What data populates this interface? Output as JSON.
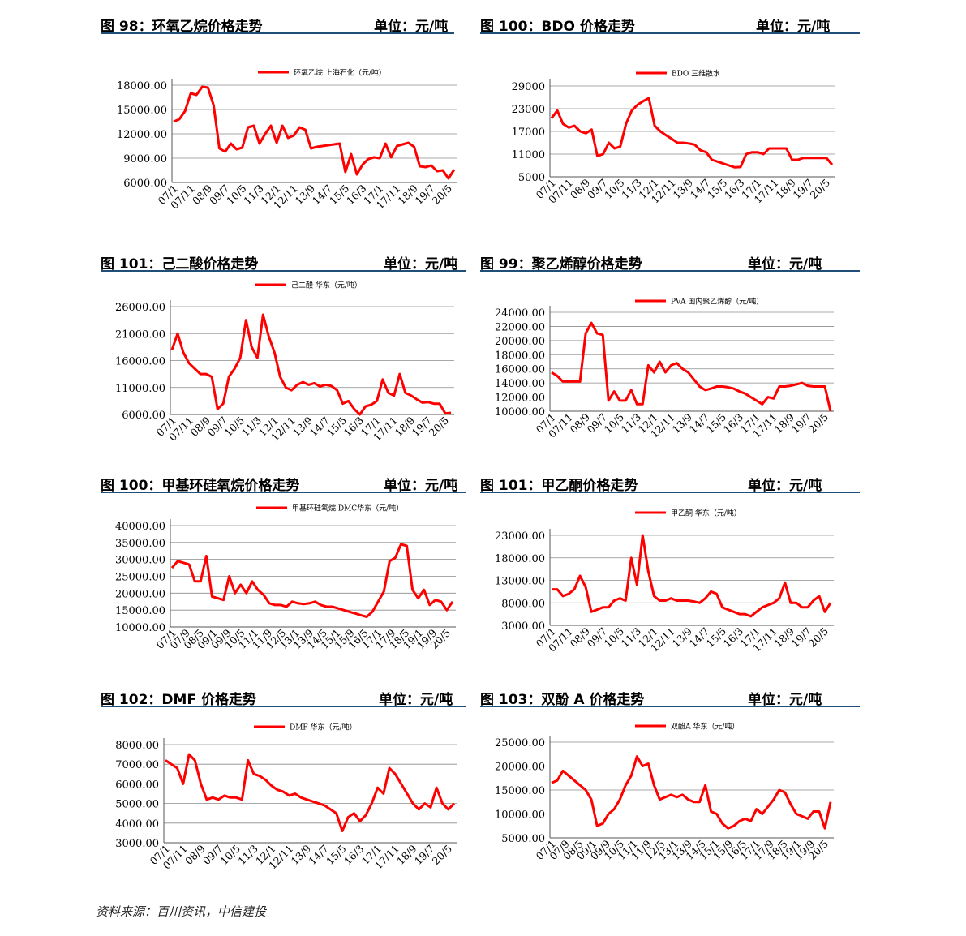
{
  "footer": {
    "source": "资料来源：百川资讯，中信建投"
  },
  "panels": [
    {
      "title": "图 98：环氧乙烷价格走势",
      "unit": "单位：元/吨"
    },
    {
      "title": "图 100：BDO 价格走势",
      "unit": "单位：元/吨"
    },
    {
      "title": "图 101：己二酸价格走势",
      "unit": "单位：元/吨"
    },
    {
      "title": "图 99：聚乙烯醇价格走势",
      "unit": "单位：元/吨"
    },
    {
      "title": "图 100：甲基环硅氧烷价格走势",
      "unit": "单位：元/吨"
    },
    {
      "title": "图 101：甲乙酮价格走势",
      "unit": "单位：元/吨"
    },
    {
      "title": "图 102：DMF 价格走势",
      "unit": "单位：元/吨"
    },
    {
      "title": "图 103：双酚 A 价格走势",
      "unit": "单位：元/吨"
    }
  ],
  "chart_data": [
    {
      "type": "line",
      "legend": "环氧乙烷 上海石化（元/吨）",
      "line_color": "#ff0000",
      "ylim": [
        6000,
        18000
      ],
      "yticks": [
        "18000.00",
        "15000.00",
        "12000.00",
        "9000.00",
        "6000.00"
      ],
      "ytick_values": [
        18000,
        15000,
        12000,
        9000,
        6000
      ],
      "xticks": [
        "07/1",
        "07/11",
        "08/9",
        "09/7",
        "10/5",
        "11/3",
        "12/1",
        "12/11",
        "13/9",
        "14/7",
        "15/5",
        "16/3",
        "17/1",
        "17/11",
        "18/9",
        "19/7",
        "20/5"
      ],
      "grid": "horizontal",
      "series": [
        {
          "values": [
            13500,
            13800,
            14800,
            17000,
            16800,
            17800,
            17700,
            15500,
            10200,
            9800,
            10800,
            10100,
            10300,
            12800,
            13000,
            10800,
            12000,
            13000,
            10900,
            13000,
            11500,
            11800,
            12800,
            12500,
            10200,
            10400,
            10500,
            10600,
            10700,
            10800,
            7300,
            9500,
            7000,
            8200,
            8900,
            9100,
            9000,
            10800,
            9100,
            10500,
            10700,
            10900,
            10400,
            8000,
            7900,
            8100,
            7400,
            7500,
            6500,
            7600
          ]
        }
      ]
    },
    {
      "type": "line",
      "legend": "BDO 三维散水",
      "line_color": "#ff0000",
      "ylim": [
        5000,
        29000
      ],
      "yticks": [
        "29000",
        "23000",
        "17000",
        "11000",
        "5000"
      ],
      "ytick_values": [
        29000,
        23000,
        17000,
        11000,
        5000
      ],
      "xticks": [
        "07/1",
        "07/11",
        "08/9",
        "09/7",
        "10/5",
        "11/3",
        "12/1",
        "12/11",
        "13/9",
        "14/7",
        "15/5",
        "16/3",
        "17/1",
        "17/11",
        "18/9",
        "19/7",
        "20/5"
      ],
      "grid": "horizontal",
      "series": [
        {
          "values": [
            20500,
            22500,
            19000,
            18000,
            18500,
            17000,
            16500,
            17500,
            10500,
            11000,
            14000,
            12500,
            13000,
            19000,
            22500,
            24000,
            25000,
            25800,
            18500,
            17000,
            16000,
            15000,
            14000,
            14000,
            13800,
            13500,
            12000,
            11500,
            9500,
            9000,
            8500,
            8000,
            7500,
            7600,
            11000,
            11500,
            11500,
            11000,
            12500,
            12500,
            12500,
            12500,
            9500,
            9500,
            10000,
            10000,
            10000,
            10000,
            10000,
            8200
          ]
        }
      ]
    },
    {
      "type": "line",
      "legend": "己二酸 华东（元/吨）",
      "line_color": "#ff0000",
      "ylim": [
        6000,
        26000
      ],
      "yticks": [
        "26000.00",
        "21000.00",
        "16000.00",
        "11000.00",
        "6000.00"
      ],
      "ytick_values": [
        26000,
        21000,
        16000,
        11000,
        6000
      ],
      "xticks": [
        "07/1",
        "07/11",
        "08/9",
        "09/7",
        "10/5",
        "11/3",
        "12/1",
        "12/11",
        "13/9",
        "14/7",
        "15/5",
        "16/3",
        "17/1",
        "17/11",
        "18/9",
        "19/7",
        "20/5"
      ],
      "grid": "horizontal",
      "series": [
        {
          "values": [
            18000,
            21000,
            17500,
            15500,
            14500,
            13500,
            13500,
            13000,
            7000,
            8000,
            13000,
            14500,
            16500,
            23500,
            18500,
            16500,
            24500,
            20500,
            17500,
            13000,
            11000,
            10500,
            11500,
            12000,
            11500,
            11800,
            11200,
            11500,
            11300,
            10500,
            8000,
            8500,
            7000,
            6000,
            7500,
            7800,
            8500,
            12500,
            10000,
            9500,
            13500,
            10000,
            9500,
            8800,
            8200,
            8300,
            8000,
            8000,
            6200,
            6300
          ]
        }
      ]
    },
    {
      "type": "line",
      "legend": "PVA 国内聚乙烯醇（元/吨）",
      "line_color": "#ff0000",
      "ylim": [
        10000,
        24000
      ],
      "yticks": [
        "24000.00",
        "22000.00",
        "20000.00",
        "18000.00",
        "16000.00",
        "14000.00",
        "12000.00",
        "10000.00"
      ],
      "ytick_values": [
        24000,
        22000,
        20000,
        18000,
        16000,
        14000,
        12000,
        10000
      ],
      "xticks": [
        "07/1",
        "07/11",
        "08/9",
        "09/7",
        "10/5",
        "11/3",
        "12/1",
        "12/11",
        "13/9",
        "14/7",
        "15/5",
        "16/3",
        "17/1",
        "17/11",
        "18/9",
        "19/7",
        "20/5"
      ],
      "grid": "horizontal",
      "series": [
        {
          "values": [
            15500,
            15000,
            14200,
            14200,
            14200,
            14200,
            21000,
            22500,
            21000,
            20800,
            11500,
            12800,
            11500,
            11500,
            13000,
            11000,
            11000,
            16500,
            15500,
            17000,
            15500,
            16500,
            16800,
            16000,
            15500,
            14500,
            13500,
            13000,
            13200,
            13500,
            13500,
            13400,
            13200,
            12800,
            12500,
            12000,
            11500,
            11000,
            12000,
            11800,
            13500,
            13500,
            13600,
            13800,
            14000,
            13600,
            13500,
            13500,
            13500,
            10000
          ]
        }
      ]
    },
    {
      "type": "line",
      "legend": "甲基环硅氧烷 DMC华东（元/吨）",
      "line_color": "#ff0000",
      "ylim": [
        10000,
        40000
      ],
      "yticks": [
        "40000.00",
        "35000.00",
        "30000.00",
        "25000.00",
        "20000.00",
        "15000.00",
        "10000.00"
      ],
      "ytick_values": [
        40000,
        35000,
        30000,
        25000,
        20000,
        15000,
        10000
      ],
      "xticks": [
        "07/1",
        "07/9",
        "08/5",
        "09/1",
        "09/9",
        "10/5",
        "11/1",
        "11/9",
        "12/5",
        "13/1",
        "13/9",
        "14/5",
        "15/1",
        "15/9",
        "16/5",
        "17/1",
        "17/9",
        "18/5",
        "19/1",
        "19/9",
        "20/5"
      ],
      "grid": "horizontal",
      "series": [
        {
          "values": [
            27500,
            29500,
            29000,
            28500,
            23500,
            23500,
            31000,
            19000,
            18500,
            18000,
            25000,
            20000,
            22500,
            20000,
            23500,
            21000,
            19500,
            17000,
            16500,
            16500,
            16000,
            17500,
            17000,
            16800,
            17000,
            17500,
            16500,
            16000,
            16000,
            15500,
            15000,
            14500,
            14000,
            13500,
            13000,
            14500,
            17500,
            20500,
            29500,
            30500,
            34500,
            34000,
            21000,
            18500,
            21000,
            16500,
            18000,
            17500,
            15000,
            17500
          ]
        }
      ]
    },
    {
      "type": "line",
      "legend": "甲乙酮 华东（元/吨）",
      "line_color": "#ff0000",
      "ylim": [
        3000,
        23000
      ],
      "yticks": [
        "23000.00",
        "18000.00",
        "13000.00",
        "8000.00",
        "3000.00"
      ],
      "ytick_values": [
        23000,
        18000,
        13000,
        8000,
        3000
      ],
      "xticks": [
        "07/1",
        "07/11",
        "08/9",
        "09/7",
        "10/5",
        "11/3",
        "12/1",
        "12/11",
        "13/9",
        "14/7",
        "15/5",
        "16/3",
        "17/1",
        "17/11",
        "18/9",
        "19/7",
        "20/5"
      ],
      "grid": "horizontal",
      "series": [
        {
          "values": [
            11000,
            11000,
            9500,
            10000,
            11000,
            14000,
            11500,
            6000,
            6500,
            7000,
            7000,
            8500,
            9000,
            8500,
            18000,
            12000,
            23000,
            15000,
            9500,
            8500,
            8500,
            9000,
            8500,
            8500,
            8500,
            8300,
            8000,
            9000,
            10500,
            10000,
            7000,
            6500,
            6000,
            5500,
            5500,
            5000,
            6000,
            7000,
            7500,
            8000,
            9000,
            12500,
            8000,
            8000,
            7000,
            7000,
            8500,
            9500,
            6000,
            8000
          ]
        }
      ]
    },
    {
      "type": "line",
      "legend": "DMF 华东（元/吨）",
      "line_color": "#ff0000",
      "ylim": [
        3000,
        8000
      ],
      "yticks": [
        "8000.00",
        "7000.00",
        "6000.00",
        "5000.00",
        "4000.00",
        "3000.00"
      ],
      "ytick_values": [
        8000,
        7000,
        6000,
        5000,
        4000,
        3000
      ],
      "xticks": [
        "07/1",
        "07/11",
        "08/9",
        "09/7",
        "10/5",
        "11/3",
        "12/1",
        "12/11",
        "13/9",
        "14/7",
        "15/5",
        "16/3",
        "17/1",
        "17/11",
        "18/9",
        "19/7",
        "20/5"
      ],
      "grid": "horizontal",
      "series": [
        {
          "values": [
            7200,
            7000,
            6800,
            6000,
            7500,
            7200,
            6000,
            5200,
            5300,
            5200,
            5400,
            5300,
            5300,
            5200,
            7200,
            6500,
            6400,
            6200,
            5900,
            5700,
            5600,
            5400,
            5500,
            5300,
            5200,
            5100,
            5000,
            4900,
            4700,
            4500,
            3600,
            4300,
            4500,
            4100,
            4400,
            5000,
            5800,
            5500,
            6800,
            6500,
            6000,
            5500,
            5000,
            4700,
            5000,
            4800,
            5800,
            5000,
            4700,
            5000
          ]
        }
      ]
    },
    {
      "type": "line",
      "legend": "双酚A 华东（元/吨）",
      "line_color": "#ff0000",
      "ylim": [
        5000,
        25000
      ],
      "yticks": [
        "25000.00",
        "20000.00",
        "15000.00",
        "10000.00",
        "5000.00"
      ],
      "ytick_values": [
        25000,
        20000,
        15000,
        10000,
        5000
      ],
      "xticks": [
        "07/1",
        "07/9",
        "08/5",
        "09/1",
        "09/9",
        "10/5",
        "11/1",
        "11/9",
        "12/5",
        "13/1",
        "13/9",
        "14/5",
        "15/1",
        "15/9",
        "16/5",
        "17/1",
        "17/9",
        "18/5",
        "19/1",
        "19/9",
        "20/5"
      ],
      "grid": "horizontal",
      "series": [
        {
          "values": [
            16500,
            17000,
            19000,
            18000,
            17000,
            16000,
            15000,
            13000,
            7500,
            8000,
            10000,
            11000,
            13000,
            16000,
            18000,
            22000,
            20000,
            20500,
            16000,
            13000,
            13500,
            14000,
            13500,
            14000,
            13000,
            12500,
            12500,
            16000,
            10500,
            10000,
            8000,
            7000,
            7500,
            8500,
            9000,
            8500,
            11000,
            10000,
            11500,
            13000,
            15000,
            14500,
            12000,
            10000,
            9500,
            9000,
            10500,
            10500,
            7000,
            12500
          ]
        }
      ]
    }
  ]
}
